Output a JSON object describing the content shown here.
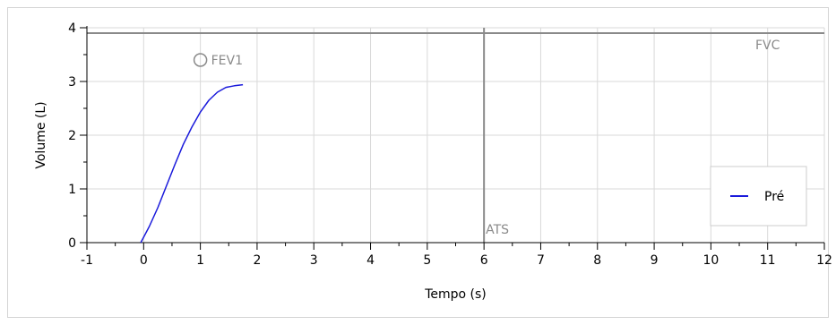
{
  "chart_data": {
    "type": "line",
    "xlabel": "Tempo (s)",
    "ylabel": "Volume (L)",
    "xlim": [
      -1,
      12
    ],
    "ylim": [
      0,
      4
    ],
    "x_ticks": [
      -1,
      0,
      1,
      2,
      3,
      4,
      5,
      6,
      7,
      8,
      9,
      10,
      11,
      12
    ],
    "y_ticks": [
      0,
      1,
      2,
      3,
      4
    ],
    "grid": true,
    "legend_position": "right",
    "series": [
      {
        "name": "Pré",
        "color": "#1a1adb",
        "x": [
          -0.05,
          0.1,
          0.25,
          0.4,
          0.55,
          0.7,
          0.85,
          1.0,
          1.15,
          1.3,
          1.45,
          1.6,
          1.75
        ],
        "y": [
          0.0,
          0.3,
          0.65,
          1.05,
          1.45,
          1.83,
          2.15,
          2.43,
          2.65,
          2.8,
          2.89,
          2.92,
          2.94
        ]
      }
    ],
    "annotations": {
      "fev1": {
        "label": "FEV1",
        "x": 1.0,
        "y": 3.4
      },
      "fvc": {
        "label": "FVC",
        "y": 3.9
      },
      "ats": {
        "label": "ATS",
        "x": 6
      }
    },
    "colors": {
      "grid": "#d9d9d9",
      "reference_line": "#8a8a8a",
      "axis": "#000000"
    }
  }
}
